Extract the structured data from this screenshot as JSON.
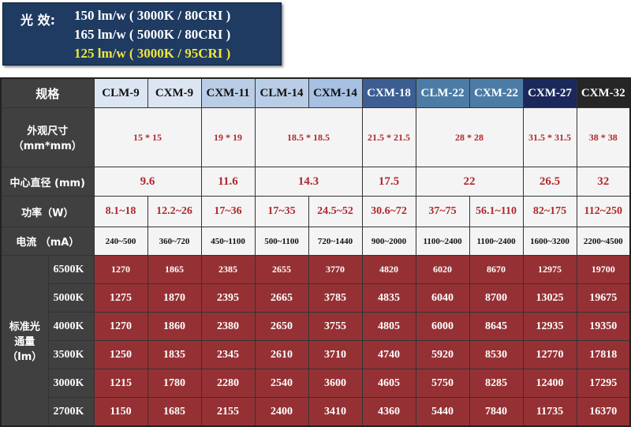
{
  "efficacy": {
    "title": "光 效:",
    "lines": [
      {
        "text": "150 lm/w ( 3000K / 80CRI )",
        "color": "#ffffff"
      },
      {
        "text": "165 lm/w ( 5000K / 80CRI )",
        "color": "#ffffff"
      },
      {
        "text": "125 lm/w ( 3000K / 95CRI )",
        "color": "#f0e63c"
      }
    ]
  },
  "table": {
    "spec_label": "规格",
    "models": [
      "CLM-9",
      "CXM-9",
      "CXM-11",
      "CLM-14",
      "CXM-14",
      "CXM-18",
      "CLM-22",
      "CXM-22",
      "CXM-27",
      "CXM-32"
    ],
    "size_label": "外观尺寸（mm*mm）",
    "sizes": [
      "15 * 15",
      "19 * 19",
      "18.5 * 18.5",
      "21.5 * 21.5",
      "28 * 28",
      "31.5 * 31.5",
      "38 * 38"
    ],
    "diameter_label": "中心直径 (mm)",
    "diameters": [
      "9.6",
      "11.6",
      "14.3",
      "17.5",
      "22",
      "26.5",
      "32"
    ],
    "power_label": "功率（W）",
    "power": [
      "8.1~18",
      "12.2~26",
      "17~36",
      "17~35",
      "24.5~52",
      "30.6~72",
      "37~75",
      "56.1~110",
      "82~175",
      "112~250"
    ],
    "current_label": "电流 （mA）",
    "current": [
      "240~500",
      "360~720",
      "450~1100",
      "500~1100",
      "720~1440",
      "900~2000",
      "1100~2400",
      "1100~2400",
      "1600~3200",
      "2200~4500"
    ],
    "flux_label": "标准光通量（lm）",
    "flux_rows": [
      {
        "cct": "6500K",
        "values": [
          "1270",
          "1865",
          "2385",
          "2655",
          "3770",
          "4820",
          "6020",
          "8670",
          "12975",
          "19700"
        ]
      },
      {
        "cct": "5000K",
        "values": [
          "1275",
          "1870",
          "2395",
          "2665",
          "3785",
          "4835",
          "6040",
          "8700",
          "13025",
          "19675"
        ]
      },
      {
        "cct": "4000K",
        "values": [
          "1270",
          "1860",
          "2380",
          "2650",
          "3755",
          "4805",
          "6000",
          "8645",
          "12935",
          "19350"
        ]
      },
      {
        "cct": "3500K",
        "values": [
          "1250",
          "1835",
          "2345",
          "2610",
          "3710",
          "4740",
          "5920",
          "8530",
          "12770",
          "17818"
        ]
      },
      {
        "cct": "3000K",
        "values": [
          "1215",
          "1780",
          "2280",
          "2540",
          "3600",
          "4605",
          "5750",
          "8285",
          "12400",
          "17295"
        ]
      },
      {
        "cct": "2700K",
        "values": [
          "1150",
          "1685",
          "2155",
          "2400",
          "3410",
          "4360",
          "5440",
          "7840",
          "11735",
          "16370"
        ]
      }
    ]
  }
}
